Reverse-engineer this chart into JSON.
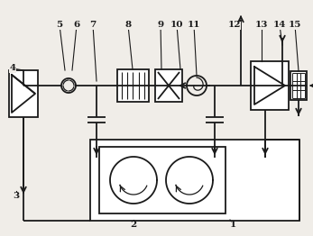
{
  "bg_color": "#f0ede8",
  "line_color": "#1a1a1a",
  "lw": 1.3,
  "figsize": [
    3.47,
    2.62
  ],
  "dpi": 100
}
